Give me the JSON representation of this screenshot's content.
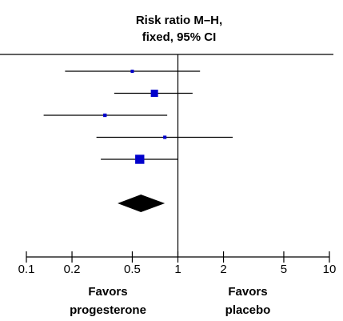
{
  "chart_data": {
    "type": "forest",
    "title_line1": "Risk ratio M–H,",
    "title_line2": "fixed, 95% CI",
    "x_scale": "log",
    "xlim": [
      0.1,
      10
    ],
    "reference_line": 1,
    "ticks": [
      0.1,
      0.2,
      0.5,
      1,
      2,
      5,
      10
    ],
    "tick_labels": [
      "0.1",
      "0.2",
      "0.5",
      "1",
      "2",
      "5",
      "10"
    ],
    "marker_color": "#0000cc",
    "studies": [
      {
        "estimate": 0.5,
        "ci_low": 0.18,
        "ci_high": 1.4,
        "weight": 0.45
      },
      {
        "estimate": 0.7,
        "ci_low": 0.38,
        "ci_high": 1.25,
        "weight": 1.0
      },
      {
        "estimate": 0.33,
        "ci_low": 0.13,
        "ci_high": 0.85,
        "weight": 0.55
      },
      {
        "estimate": 0.82,
        "ci_low": 0.29,
        "ci_high": 2.3,
        "weight": 0.5
      },
      {
        "estimate": 0.56,
        "ci_low": 0.31,
        "ci_high": 1.0,
        "weight": 1.6
      }
    ],
    "pooled": {
      "estimate": 0.57,
      "ci_low": 0.4,
      "ci_high": 0.82
    },
    "favors_left_line1": "Favors",
    "favors_left_line2": "progesterone",
    "favors_right_line1": "Favors",
    "favors_right_line2": "placebo"
  }
}
